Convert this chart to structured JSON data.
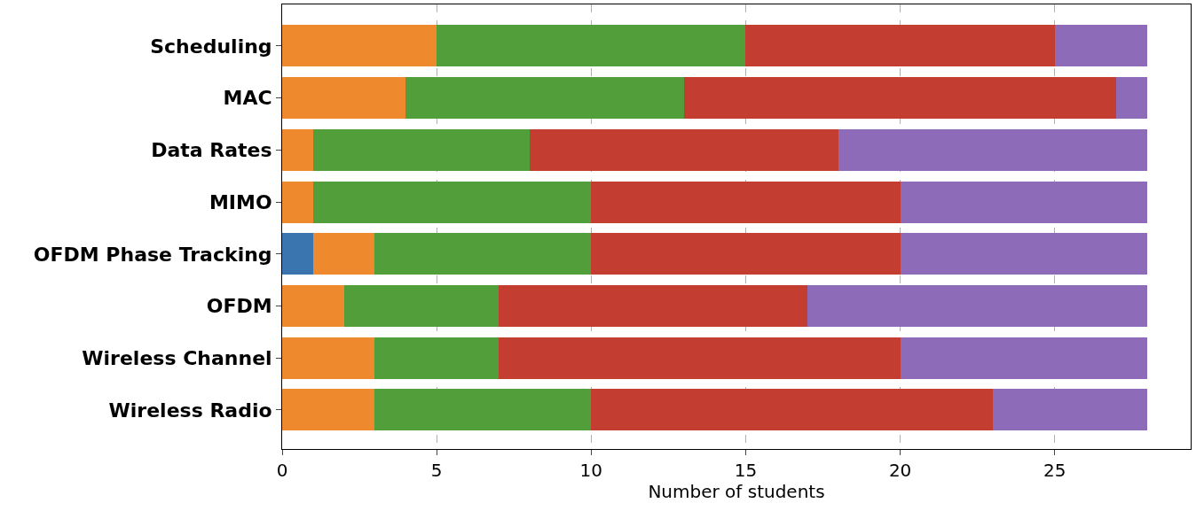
{
  "chart_data": {
    "type": "bar",
    "orientation": "horizontal",
    "stacked": true,
    "xlabel": "Number of students",
    "categories": [
      "Scheduling",
      "MAC",
      "Data Rates",
      "MIMO",
      "OFDM Phase Tracking",
      "OFDM",
      "Wireless Channel",
      "Wireless Radio"
    ],
    "series": [
      {
        "color": "#3a75b0",
        "values": [
          0,
          0,
          0,
          0,
          1,
          0,
          0,
          0
        ]
      },
      {
        "color": "#ee8a2d",
        "values": [
          5,
          4,
          1,
          1,
          2,
          2,
          3,
          3
        ]
      },
      {
        "color": "#519e3a",
        "values": [
          10,
          9,
          7,
          9,
          7,
          5,
          4,
          7
        ]
      },
      {
        "color": "#c43d31",
        "values": [
          10,
          14,
          10,
          10,
          10,
          10,
          13,
          13
        ]
      },
      {
        "color": "#8d6bb9",
        "values": [
          3,
          1,
          10,
          8,
          8,
          11,
          8,
          5
        ]
      }
    ],
    "xlim": [
      0,
      29.4
    ],
    "xticks": [
      0,
      5,
      10,
      15,
      20,
      25
    ],
    "grid": "x"
  }
}
